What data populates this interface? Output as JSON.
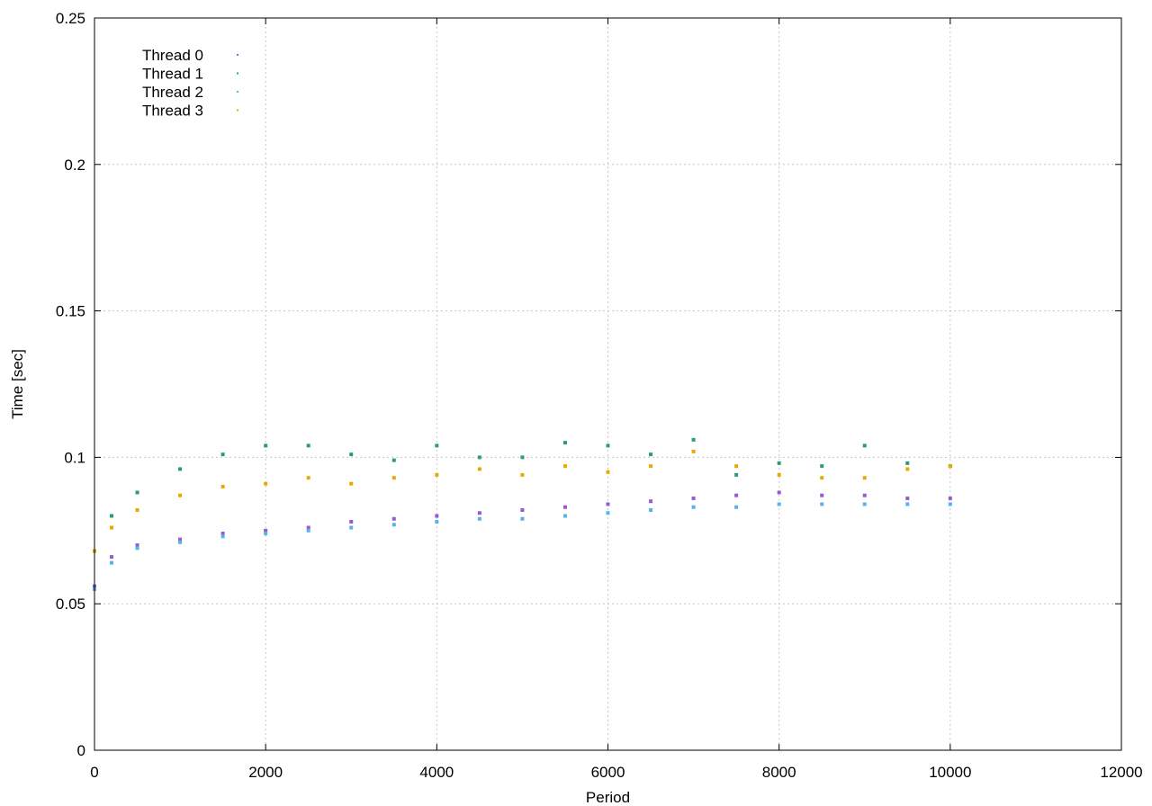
{
  "chart_data": {
    "type": "scatter",
    "title": "",
    "xlabel": "Period",
    "ylabel": "Time [sec]",
    "xlim": [
      0,
      12000
    ],
    "ylim": [
      0,
      0.25
    ],
    "xticks": [
      0,
      2000,
      4000,
      6000,
      8000,
      10000,
      12000
    ],
    "xtick_labels": [
      "0",
      "2000",
      "4000",
      "6000",
      "8000",
      "10000",
      "12000"
    ],
    "yticks": [
      0,
      0.05,
      0.1,
      0.15,
      0.2,
      0.25
    ],
    "ytick_labels": [
      "0",
      "0.05",
      "0.1",
      "0.15",
      "0.2",
      "0.25"
    ],
    "grid": true,
    "legend_position": "top-left",
    "series": [
      {
        "name": "Thread 0",
        "color": "#9b59d0",
        "x": [
          0,
          200,
          500,
          1000,
          1500,
          2000,
          2500,
          3000,
          3500,
          4000,
          4500,
          5000,
          5500,
          6000,
          6500,
          7000,
          7500,
          8000,
          8500,
          9000,
          9500,
          10000
        ],
        "y": [
          0.056,
          0.066,
          0.07,
          0.072,
          0.074,
          0.075,
          0.076,
          0.078,
          0.079,
          0.08,
          0.081,
          0.082,
          0.083,
          0.084,
          0.085,
          0.086,
          0.087,
          0.088,
          0.087,
          0.087,
          0.086,
          0.086
        ]
      },
      {
        "name": "Thread 1",
        "color": "#2a9d78",
        "x": [
          0,
          200,
          500,
          1000,
          1500,
          2000,
          2500,
          3000,
          3500,
          4000,
          4500,
          5000,
          5500,
          6000,
          6500,
          7000,
          7500,
          8000,
          8500,
          9000,
          9500,
          10000
        ],
        "y": [
          0.068,
          0.08,
          0.088,
          0.096,
          0.101,
          0.104,
          0.104,
          0.101,
          0.099,
          0.104,
          0.1,
          0.1,
          0.105,
          0.104,
          0.101,
          0.106,
          0.094,
          0.098,
          0.097,
          0.104,
          0.098,
          0.097
        ]
      },
      {
        "name": "Thread 2",
        "color": "#56b4e9",
        "x": [
          0,
          200,
          500,
          1000,
          1500,
          2000,
          2500,
          3000,
          3500,
          4000,
          4500,
          5000,
          5500,
          6000,
          6500,
          7000,
          7500,
          8000,
          8500,
          9000,
          9500,
          10000
        ],
        "y": [
          0.055,
          0.064,
          0.069,
          0.071,
          0.073,
          0.074,
          0.075,
          0.076,
          0.077,
          0.078,
          0.079,
          0.079,
          0.08,
          0.081,
          0.082,
          0.083,
          0.083,
          0.084,
          0.084,
          0.084,
          0.084,
          0.084
        ]
      },
      {
        "name": "Thread 3",
        "color": "#e6ab02",
        "x": [
          0,
          200,
          500,
          1000,
          1500,
          2000,
          2500,
          3000,
          3500,
          4000,
          4500,
          5000,
          5500,
          6000,
          6500,
          7000,
          7500,
          8000,
          8500,
          9000,
          9500,
          10000
        ],
        "y": [
          0.068,
          0.076,
          0.082,
          0.087,
          0.09,
          0.091,
          0.093,
          0.091,
          0.093,
          0.094,
          0.096,
          0.094,
          0.097,
          0.095,
          0.097,
          0.102,
          0.097,
          0.094,
          0.093,
          0.093,
          0.096,
          0.097
        ]
      }
    ]
  }
}
